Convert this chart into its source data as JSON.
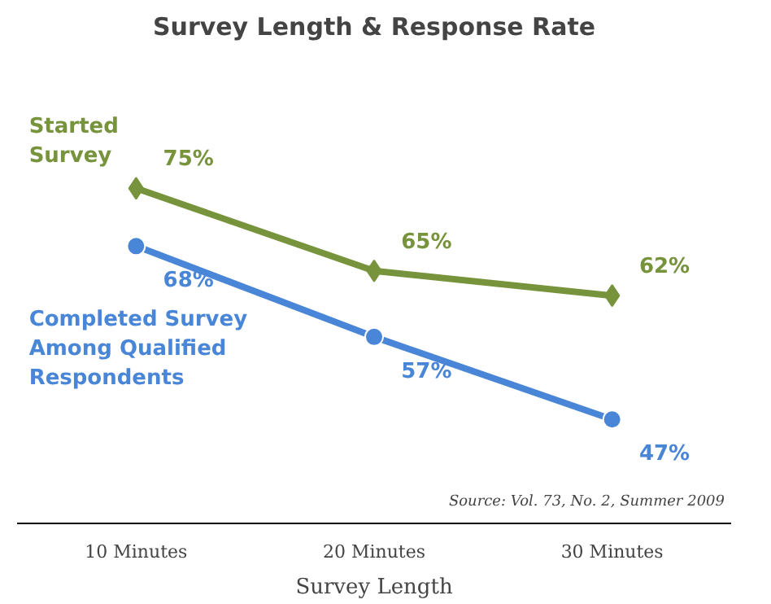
{
  "chart_data": {
    "type": "line",
    "title": "Survey Length & Response Rate",
    "xlabel": "Survey Length",
    "categories": [
      "10 Minutes",
      "20 Minutes",
      "30 Minutes"
    ],
    "series": [
      {
        "name": "Started Survey",
        "color": "#77933c",
        "marker": "diamond",
        "values": [
          75,
          65,
          62
        ],
        "value_labels": [
          "75%",
          "65%",
          "62%"
        ]
      },
      {
        "name": "Completed Survey Among Qualified Respondents",
        "color": "#4a86d8",
        "marker": "circle",
        "values": [
          68,
          57,
          47
        ],
        "value_labels": [
          "68%",
          "57%",
          "47%"
        ]
      }
    ],
    "annotations": [
      "Source: Vol. 73, No. 2, Summer 2009"
    ],
    "grid": false,
    "legend": false
  }
}
